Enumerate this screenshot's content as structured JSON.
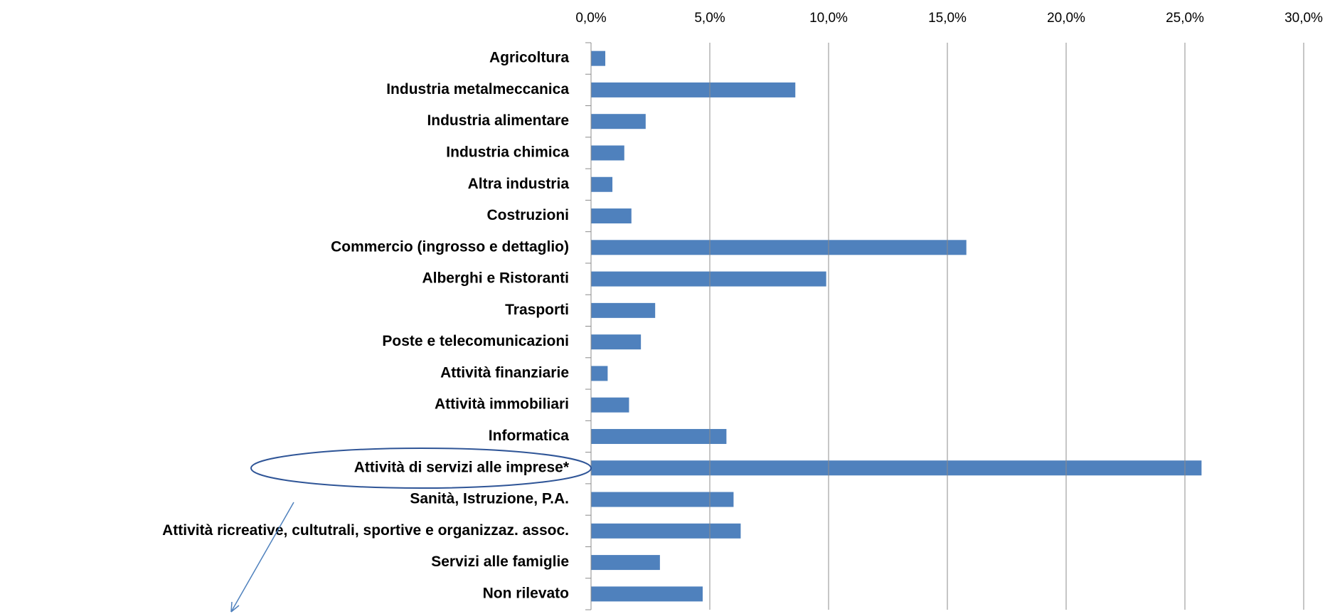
{
  "chart_data": {
    "type": "hbar",
    "color": "#4f81bd",
    "grid": true,
    "categories": [
      "Agricoltura",
      "Industria metalmeccanica",
      "Industria alimentare",
      "Industria chimica",
      "Altra industria",
      "Costruzioni",
      "Commercio (ingrosso e dettaglio)",
      "Alberghi e Ristoranti",
      "Trasporti",
      "Poste e telecomunicazioni",
      "Attività finanziarie",
      "Attività  immobiliari",
      "Informatica",
      "Attività di servizi alle imprese*",
      "Sanità, Istruzione, P.A.",
      "Attività ricreative, cultutrali, sportive e organizzaz. assoc.",
      "Servizi alle famiglie",
      "Non rilevato"
    ],
    "values": [
      0.6,
      8.6,
      2.3,
      1.4,
      0.9,
      1.7,
      15.8,
      9.9,
      2.7,
      2.1,
      0.7,
      1.6,
      5.7,
      25.7,
      6.0,
      6.3,
      2.9,
      4.7
    ],
    "xlim": [
      0,
      30
    ],
    "xticks": [
      {
        "value": 0,
        "label": "0,0%"
      },
      {
        "value": 5,
        "label": "5,0%"
      },
      {
        "value": 10,
        "label": "10,0%"
      },
      {
        "value": 15,
        "label": "15,0%"
      },
      {
        "value": 20,
        "label": "20,0%"
      },
      {
        "value": 25,
        "label": "25,0%"
      },
      {
        "value": 30,
        "label": "30,0%"
      }
    ]
  }
}
